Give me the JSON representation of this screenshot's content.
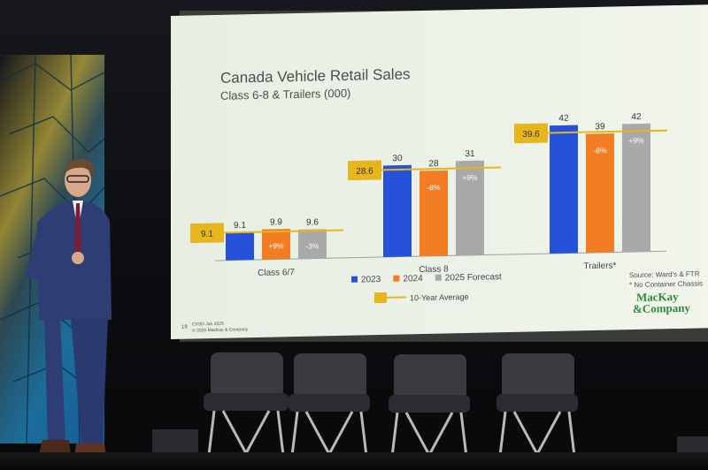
{
  "slide": {
    "title": "Canada Vehicle Retail Sales",
    "subtitle": "Class 6-8 & Trailers (000)",
    "page_number": "19",
    "footer_lines": [
      "CVSD Jan 2025",
      "© 2025 MacKay & Company"
    ],
    "source_line1": "Source: Ward's & FTR",
    "source_line2": "* No Container Chassis",
    "logo_line1": "MacKay",
    "logo_line2": "&Company"
  },
  "chart_data": {
    "type": "bar",
    "title": "Canada Vehicle Retail Sales",
    "subtitle": "Class 6-8 & Trailers (000)",
    "categories": [
      "Class 6/7",
      "Class 8",
      "Trailers*"
    ],
    "series": [
      {
        "name": "2023",
        "color": "#2651d9",
        "values": [
          9.1,
          30,
          42
        ],
        "labels": [
          "9.1",
          "30",
          "42"
        ]
      },
      {
        "name": "2024",
        "color": "#f27d24",
        "values": [
          9.9,
          28,
          39
        ],
        "labels": [
          "9.9",
          "28",
          "39"
        ],
        "change_labels": [
          "+9%",
          "-8%",
          "-8%"
        ]
      },
      {
        "name": "2025 Forecast",
        "color": "#a9a9a9",
        "values": [
          9.6,
          31,
          42
        ],
        "labels": [
          "9.6",
          "31",
          "42"
        ],
        "change_labels": [
          "-3%",
          "+9%",
          "+9%"
        ]
      }
    ],
    "ten_year_average": {
      "name": "10-Year Average",
      "color": "#e7b51c",
      "values": [
        9.1,
        28.6,
        39.6
      ],
      "labels": [
        "9.1",
        "28.6",
        "39.6"
      ]
    },
    "legend_position": "bottom-center"
  }
}
